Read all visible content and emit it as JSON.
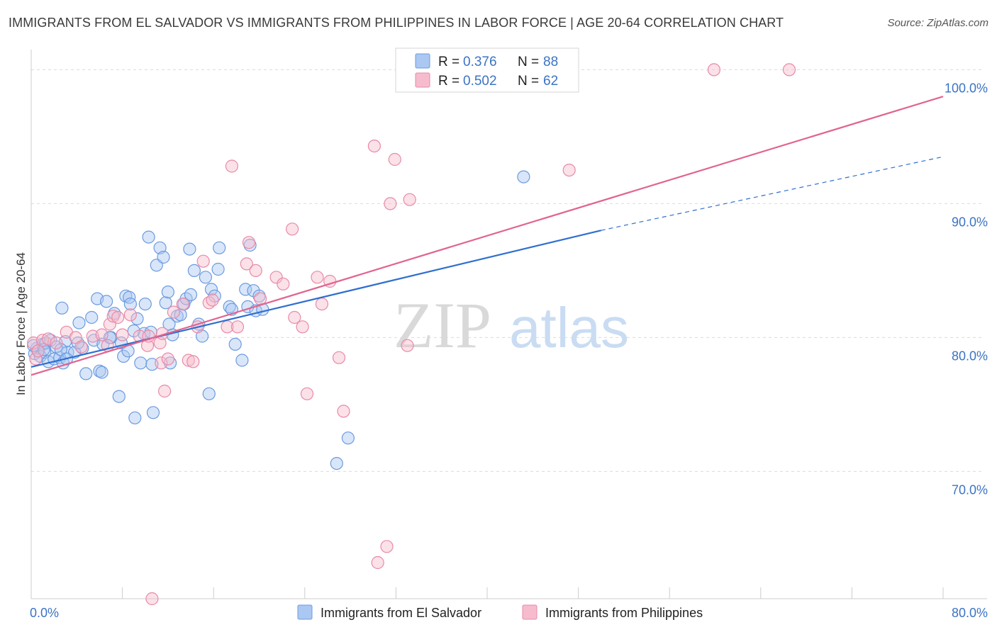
{
  "title": "IMMIGRANTS FROM EL SALVADOR VS IMMIGRANTS FROM PHILIPPINES IN LABOR FORCE | AGE 20-64 CORRELATION CHART",
  "source": "Source: ZipAtlas.com",
  "watermark": {
    "zip": "ZIP",
    "atlas": "atlas"
  },
  "chart_data": {
    "type": "scatter",
    "ylabel": "In Labor Force | Age 20-64",
    "xlim": [
      0,
      80
    ],
    "ylim": [
      60.5,
      101.5
    ],
    "x_tick_labels": [
      {
        "v": 0,
        "label": "0.0%"
      },
      {
        "v": 80,
        "label": "80.0%"
      }
    ],
    "y_tick_labels": [
      {
        "v": 100,
        "label": "100.0%"
      },
      {
        "v": 90,
        "label": "90.0%"
      },
      {
        "v": 80,
        "label": "80.0%"
      },
      {
        "v": 70,
        "label": "70.0%"
      }
    ],
    "gridlines_y": [
      100,
      90,
      80,
      70
    ],
    "legend_position": "top-center",
    "series": [
      {
        "name": "Immigrants from El Salvador",
        "color": "#6b9be0",
        "fill": "#aac8f2",
        "line_color": "#2f6fd0",
        "r_label": "R =",
        "r_value": "0.376",
        "n_label": "N =",
        "n_value": "88",
        "trend": {
          "x0": 0,
          "y0": 77.8,
          "x1": 50,
          "y1": 88.0,
          "dash_x1": 80,
          "dash_y1": 93.5
        },
        "points": [
          [
            0.3,
            78.8
          ],
          [
            0.5,
            79.2
          ],
          [
            0.8,
            78.6
          ],
          [
            1.0,
            79.5
          ],
          [
            1.2,
            78.9
          ],
          [
            1.3,
            79.6
          ],
          [
            1.5,
            78.2
          ],
          [
            1.7,
            79.8
          ],
          [
            2.0,
            78.4
          ],
          [
            2.2,
            79.3
          ],
          [
            2.5,
            78.5
          ],
          [
            2.8,
            78.1
          ],
          [
            3.0,
            79.7
          ],
          [
            3.2,
            78.9
          ],
          [
            2.7,
            82.2
          ],
          [
            4.2,
            81.1
          ],
          [
            4.5,
            79.2
          ],
          [
            4.8,
            77.3
          ],
          [
            5.3,
            81.5
          ],
          [
            5.5,
            79.8
          ],
          [
            6.0,
            77.5
          ],
          [
            5.8,
            82.9
          ],
          [
            6.3,
            79.5
          ],
          [
            6.6,
            82.7
          ],
          [
            7.0,
            80.0
          ],
          [
            7.3,
            81.8
          ],
          [
            7.7,
            75.6
          ],
          [
            7.9,
            79.6
          ],
          [
            8.1,
            78.6
          ],
          [
            8.3,
            83.1
          ],
          [
            8.5,
            79.0
          ],
          [
            8.6,
            83.0
          ],
          [
            8.7,
            82.5
          ],
          [
            9.1,
            74.0
          ],
          [
            9.3,
            81.4
          ],
          [
            9.6,
            78.1
          ],
          [
            9.9,
            80.3
          ],
          [
            10.0,
            82.5
          ],
          [
            10.3,
            87.5
          ],
          [
            10.5,
            80.4
          ],
          [
            10.7,
            74.4
          ],
          [
            11.0,
            85.4
          ],
          [
            11.3,
            86.7
          ],
          [
            11.6,
            86.0
          ],
          [
            11.8,
            82.6
          ],
          [
            12.0,
            83.4
          ],
          [
            12.2,
            78.1
          ],
          [
            12.4,
            80.2
          ],
          [
            12.8,
            81.6
          ],
          [
            13.1,
            81.7
          ],
          [
            13.4,
            82.5
          ],
          [
            13.6,
            82.9
          ],
          [
            13.9,
            86.6
          ],
          [
            14.0,
            83.2
          ],
          [
            14.3,
            85.0
          ],
          [
            14.7,
            81.0
          ],
          [
            15.0,
            80.1
          ],
          [
            15.3,
            84.5
          ],
          [
            15.6,
            75.8
          ],
          [
            15.8,
            83.6
          ],
          [
            16.1,
            83.1
          ],
          [
            16.4,
            85.1
          ],
          [
            16.5,
            86.7
          ],
          [
            17.4,
            82.3
          ],
          [
            17.6,
            82.1
          ],
          [
            17.9,
            79.5
          ],
          [
            18.5,
            78.3
          ],
          [
            18.8,
            83.6
          ],
          [
            19.0,
            82.3
          ],
          [
            19.2,
            86.9
          ],
          [
            19.5,
            83.5
          ],
          [
            19.7,
            82.0
          ],
          [
            20.0,
            83.1
          ],
          [
            20.3,
            82.1
          ],
          [
            1.1,
            79.1
          ],
          [
            2.6,
            79.1
          ],
          [
            3.8,
            78.9
          ],
          [
            6.9,
            80.0
          ],
          [
            10.6,
            78.0
          ],
          [
            12.1,
            81.0
          ],
          [
            26.8,
            70.6
          ],
          [
            27.8,
            72.5
          ],
          [
            43.2,
            92.0
          ],
          [
            0.2,
            79.4
          ],
          [
            4.1,
            79.6
          ],
          [
            6.2,
            77.4
          ],
          [
            9.0,
            80.5
          ],
          [
            3.1,
            78.4
          ]
        ]
      },
      {
        "name": "Immigrants from Philippines",
        "color": "#e88aa8",
        "fill": "#f6bccd",
        "line_color": "#e0648f",
        "r_label": "R =",
        "r_value": "0.502",
        "n_label": "N =",
        "n_value": "62",
        "trend": {
          "x0": 0,
          "y0": 77.2,
          "x1": 80,
          "y1": 98.0
        },
        "points": [
          [
            0.2,
            79.6
          ],
          [
            0.4,
            78.4
          ],
          [
            0.6,
            79.0
          ],
          [
            1.0,
            79.8
          ],
          [
            1.5,
            79.9
          ],
          [
            2.2,
            79.6
          ],
          [
            3.1,
            80.4
          ],
          [
            3.9,
            80.0
          ],
          [
            4.4,
            79.3
          ],
          [
            5.4,
            80.1
          ],
          [
            6.2,
            80.2
          ],
          [
            6.7,
            79.4
          ],
          [
            6.9,
            81.0
          ],
          [
            7.2,
            81.6
          ],
          [
            7.6,
            81.5
          ],
          [
            8.0,
            80.2
          ],
          [
            8.7,
            81.7
          ],
          [
            9.5,
            80.1
          ],
          [
            10.2,
            79.4
          ],
          [
            10.3,
            80.1
          ],
          [
            10.6,
            60.5
          ],
          [
            11.3,
            79.6
          ],
          [
            11.4,
            78.1
          ],
          [
            11.5,
            80.3
          ],
          [
            11.7,
            76.0
          ],
          [
            12.0,
            78.4
          ],
          [
            12.5,
            81.9
          ],
          [
            13.3,
            82.5
          ],
          [
            13.8,
            78.3
          ],
          [
            14.2,
            78.2
          ],
          [
            14.6,
            80.8
          ],
          [
            15.1,
            85.7
          ],
          [
            15.6,
            82.6
          ],
          [
            15.9,
            82.8
          ],
          [
            17.2,
            80.8
          ],
          [
            17.6,
            92.8
          ],
          [
            18.1,
            80.8
          ],
          [
            18.9,
            85.5
          ],
          [
            19.1,
            87.1
          ],
          [
            19.7,
            85.0
          ],
          [
            20.1,
            82.9
          ],
          [
            21.5,
            84.5
          ],
          [
            22.1,
            84.0
          ],
          [
            22.9,
            88.1
          ],
          [
            23.1,
            81.5
          ],
          [
            23.8,
            80.8
          ],
          [
            24.2,
            75.8
          ],
          [
            25.1,
            84.5
          ],
          [
            25.5,
            82.5
          ],
          [
            26.2,
            84.2
          ],
          [
            27.0,
            78.5
          ],
          [
            27.4,
            74.5
          ],
          [
            30.1,
            94.3
          ],
          [
            30.4,
            63.2
          ],
          [
            31.2,
            64.4
          ],
          [
            31.5,
            90.0
          ],
          [
            31.9,
            93.3
          ],
          [
            33.0,
            79.4
          ],
          [
            33.2,
            90.3
          ],
          [
            47.2,
            92.5
          ],
          [
            59.9,
            100.0
          ],
          [
            66.5,
            100.0
          ]
        ]
      }
    ]
  }
}
